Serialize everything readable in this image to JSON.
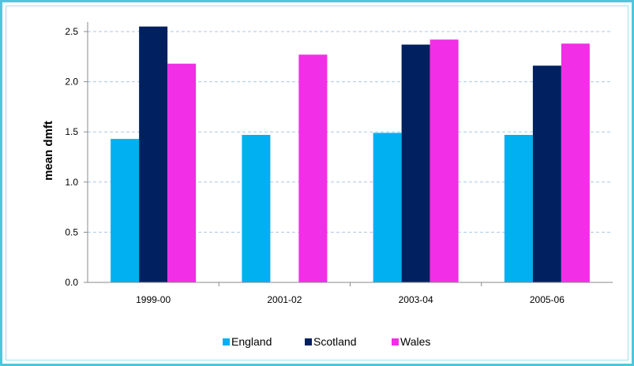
{
  "chart_data": {
    "type": "bar",
    "categories": [
      "1999-00",
      "2001-02",
      "2003-04",
      "2005-06"
    ],
    "series": [
      {
        "name": "England",
        "color": "#00b0f0",
        "values": [
          1.43,
          1.47,
          1.49,
          1.47
        ]
      },
      {
        "name": "Scotland",
        "color": "#002060",
        "values": [
          2.55,
          null,
          2.37,
          2.16
        ]
      },
      {
        "name": "Wales",
        "color": "#f22ee6",
        "values": [
          2.18,
          2.27,
          2.42,
          2.38
        ]
      }
    ],
    "title": "",
    "xlabel": "",
    "ylabel": "mean dmft",
    "ylim": [
      0,
      2.5
    ],
    "yticks": [
      "0.0",
      "0.5",
      "1.0",
      "1.5",
      "2.0",
      "2.5"
    ],
    "grid": true,
    "legend": "bottom"
  }
}
